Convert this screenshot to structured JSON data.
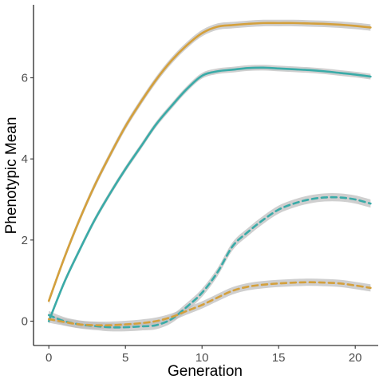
{
  "chart_data": {
    "type": "line",
    "title": "",
    "xlabel": "Generation",
    "ylabel": "Phenotypic Mean",
    "xlim": [
      -1,
      21.5
    ],
    "ylim": [
      -0.6,
      7.8
    ],
    "x_ticks": [
      0,
      5,
      10,
      15,
      20
    ],
    "y_ticks": [
      0,
      2,
      4,
      6
    ],
    "grid": false,
    "legend": "none",
    "x": [
      0,
      1,
      2,
      3,
      4,
      5,
      6,
      7,
      8,
      9,
      10,
      11,
      12,
      13,
      14,
      15,
      16,
      17,
      18,
      19,
      20,
      21
    ],
    "series": [
      {
        "color": "#d4a03c",
        "linestyle": "solid",
        "values": [
          0.5,
          1.55,
          2.5,
          3.35,
          4.1,
          4.8,
          5.4,
          5.95,
          6.42,
          6.8,
          7.1,
          7.26,
          7.3,
          7.33,
          7.35,
          7.35,
          7.35,
          7.34,
          7.33,
          7.31,
          7.28,
          7.24
        ],
        "band": 0.08
      },
      {
        "color": "#3aaba8",
        "linestyle": "solid",
        "values": [
          0.0,
          0.95,
          1.75,
          2.5,
          3.15,
          3.75,
          4.3,
          4.85,
          5.3,
          5.72,
          6.05,
          6.16,
          6.2,
          6.24,
          6.25,
          6.23,
          6.21,
          6.19,
          6.16,
          6.12,
          6.08,
          6.03
        ],
        "band": 0.07
      },
      {
        "color": "#3aaba8",
        "linestyle": "dashed",
        "values": [
          0.15,
          0.0,
          -0.08,
          -0.12,
          -0.15,
          -0.15,
          -0.13,
          -0.1,
          0.05,
          0.35,
          0.7,
          1.2,
          1.85,
          2.2,
          2.5,
          2.75,
          2.9,
          3.0,
          3.05,
          3.05,
          3.0,
          2.9
        ],
        "band": 0.1
      },
      {
        "color": "#d4a03c",
        "linestyle": "dashed",
        "values": [
          0.05,
          -0.02,
          -0.08,
          -0.1,
          -0.1,
          -0.08,
          -0.05,
          0.0,
          0.1,
          0.25,
          0.4,
          0.58,
          0.75,
          0.85,
          0.9,
          0.93,
          0.95,
          0.96,
          0.95,
          0.93,
          0.88,
          0.82
        ],
        "band": 0.09
      }
    ]
  }
}
